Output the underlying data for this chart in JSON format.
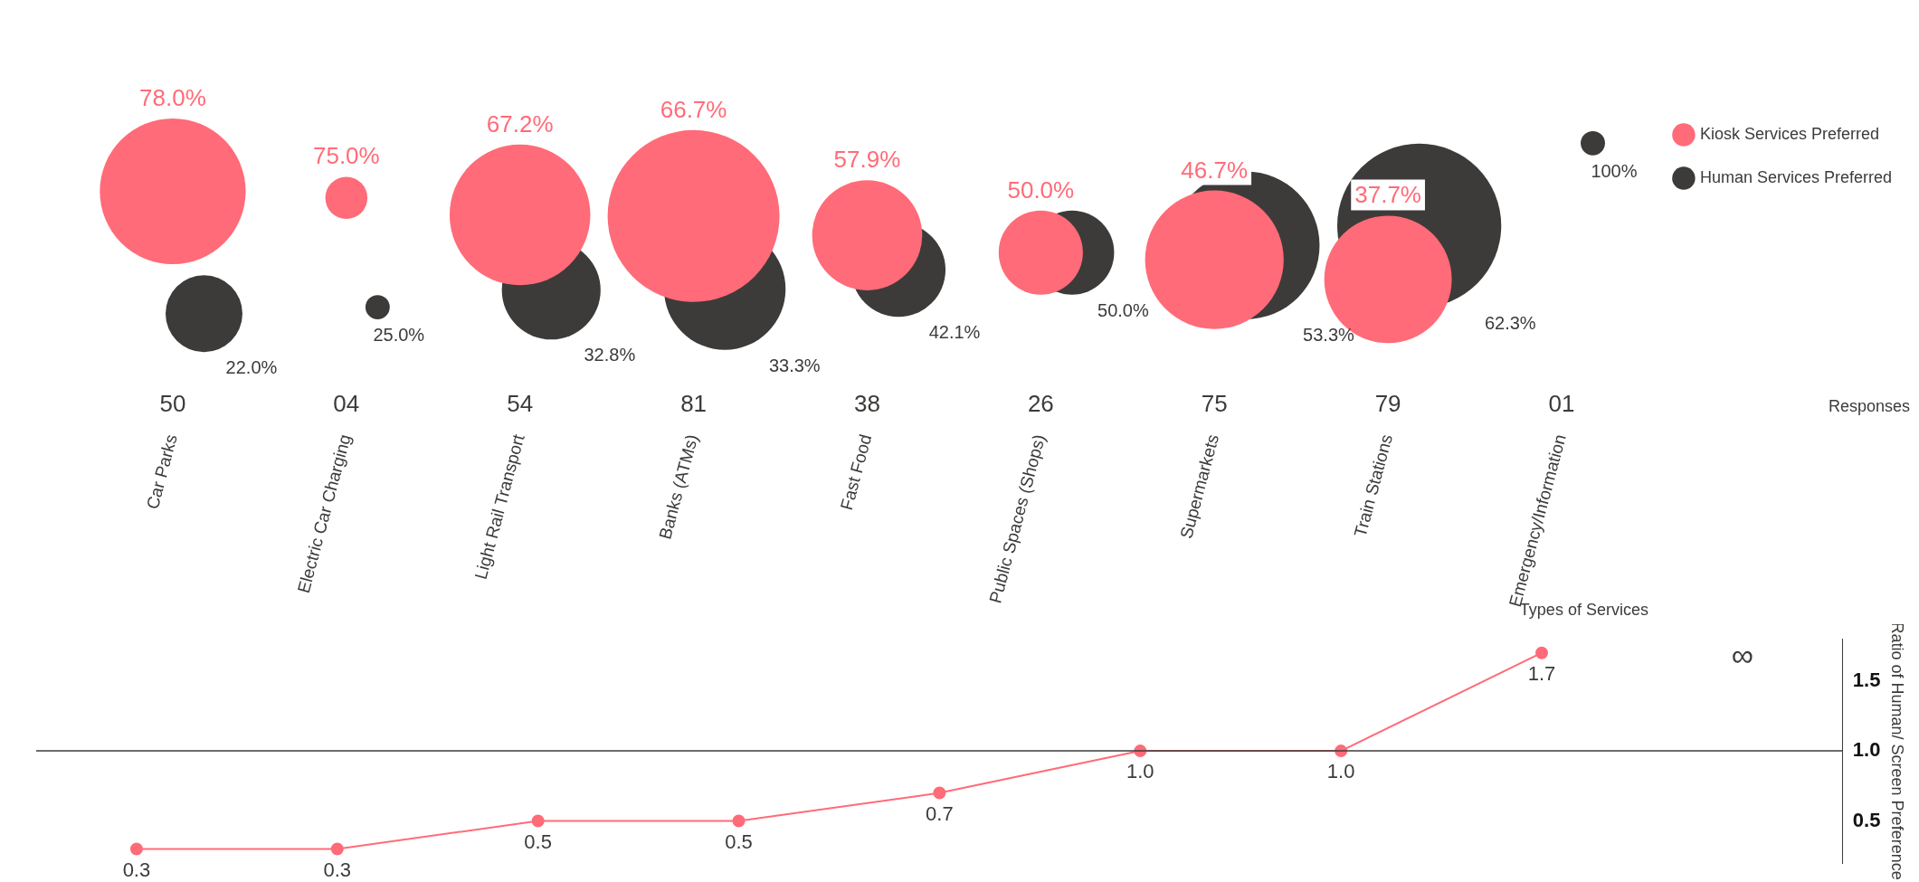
{
  "chart_data": [
    {
      "type": "bubble",
      "categories": [
        "Car Parks",
        "Electric Car Charging",
        "Light Rail Transport",
        "Banks (ATMs)",
        "Fast Food",
        "Public Spaces (Shops)",
        "Supermarkets",
        "Train Stations",
        "Emergency/Information"
      ],
      "xlabel": "Types of Services",
      "legend": "top right",
      "series": [
        {
          "name": "Kiosk Services Preferred",
          "color": "#ff6b78",
          "values": [
            78.0,
            75.0,
            67.2,
            66.7,
            57.9,
            50.0,
            46.7,
            37.7,
            null
          ],
          "sizes": [
            0.72,
            0.06,
            0.67,
            1,
            0.41,
            0.24,
            0.65,
            0.55,
            null
          ],
          "value_labels": [
            "78.0%",
            "75.0%",
            "67.2%",
            "66.7%",
            "57.9%",
            "50.0%",
            "46.7%",
            "37.7%",
            null
          ]
        },
        {
          "name": "Human Services Preferred",
          "color": "#3d3b39",
          "values": [
            22.0,
            25.0,
            32.8,
            33.3,
            42.1,
            50.0,
            53.3,
            62.3,
            100
          ],
          "sizes": [
            0.2,
            0.02,
            0.33,
            0.5,
            0.3,
            0.24,
            0.74,
            0.91,
            0.02
          ],
          "value_labels": [
            "22.0%",
            "25.0%",
            "32.8%",
            "33.3%",
            "42.1%",
            "50.0%",
            "53.3%",
            "62.3%",
            "100%"
          ]
        }
      ],
      "annotations": [
        "50",
        "04",
        "54",
        "81",
        "38",
        "26",
        "75",
        "79",
        "01",
        "Responses"
      ]
    },
    {
      "type": "line",
      "categories": [
        null,
        null,
        null,
        null,
        null,
        null,
        null,
        null,
        null
      ],
      "ylabel": "Ratio of Human/ Screen Preference",
      "ylim": [
        0.2,
        1.8
      ],
      "yticks": [
        {
          "value": 0.5,
          "label": "0.5"
        },
        {
          "value": 1.0,
          "label": "1.0"
        },
        {
          "value": 1.5,
          "label": "1.5"
        }
      ],
      "tick_labels": "y",
      "marker": "circle",
      "line_style": "solid",
      "series": [
        {
          "color": "#ff6b78",
          "values": [
            0.3,
            0.3,
            0.5,
            0.5,
            0.7,
            1.0,
            1.0,
            1.7,
            null
          ],
          "value_labels": [
            "0.3",
            "0.3",
            "0.5",
            "0.5",
            "0.7",
            "1.0",
            "1.0",
            "1.7",
            null
          ]
        }
      ],
      "ref_lines": [
        {
          "axis": "y",
          "value": 1.0,
          "color": "#3d3b39"
        }
      ],
      "annotations": [
        "∞"
      ]
    }
  ]
}
